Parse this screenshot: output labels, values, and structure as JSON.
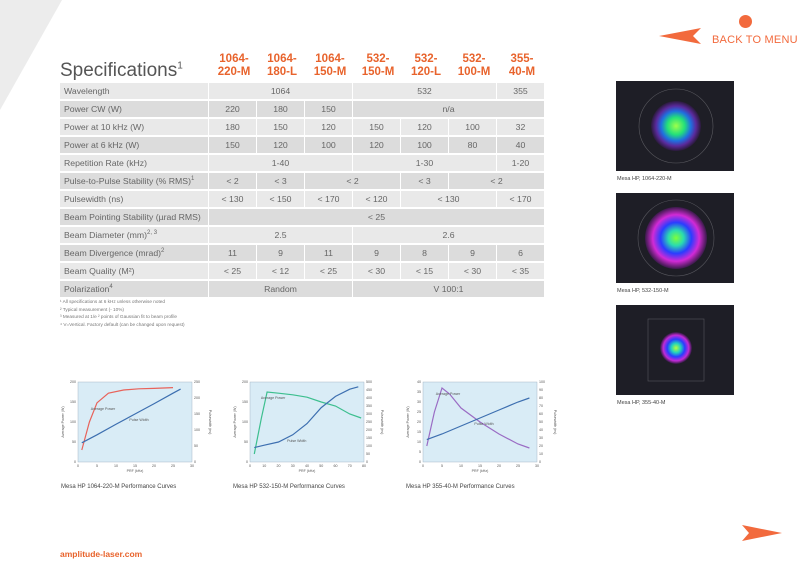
{
  "nav": {
    "back_label": "BACK TO MENU"
  },
  "title": "Specifications",
  "title_note": "1",
  "columns": [
    [
      "1064-",
      "220-M"
    ],
    [
      "1064-",
      "180-L"
    ],
    [
      "1064-",
      "150-M"
    ],
    [
      "532-",
      "150-M"
    ],
    [
      "532-",
      "120-L"
    ],
    [
      "532-",
      "100-M"
    ],
    [
      "355-",
      "40-M"
    ]
  ],
  "rows": [
    {
      "label": "Wavelength",
      "note": "",
      "cells": [
        {
          "v": "1064",
          "s": 3
        },
        {
          "v": "532",
          "s": 3
        },
        {
          "v": "355",
          "s": 1
        }
      ]
    },
    {
      "label": "Power CW (W)",
      "note": "",
      "cells": [
        {
          "v": "220",
          "s": 1
        },
        {
          "v": "180",
          "s": 1
        },
        {
          "v": "150",
          "s": 1
        },
        {
          "v": "n/a",
          "s": 4
        }
      ]
    },
    {
      "label": "Power at 10 kHz (W)",
      "note": "",
      "cells": [
        {
          "v": "180",
          "s": 1
        },
        {
          "v": "150",
          "s": 1
        },
        {
          "v": "120",
          "s": 1
        },
        {
          "v": "150",
          "s": 1
        },
        {
          "v": "120",
          "s": 1
        },
        {
          "v": "100",
          "s": 1
        },
        {
          "v": "32",
          "s": 1
        }
      ]
    },
    {
      "label": "Power at 6 kHz (W)",
      "note": "",
      "cells": [
        {
          "v": "150",
          "s": 1
        },
        {
          "v": "120",
          "s": 1
        },
        {
          "v": "100",
          "s": 1
        },
        {
          "v": "120",
          "s": 1
        },
        {
          "v": "100",
          "s": 1
        },
        {
          "v": "80",
          "s": 1
        },
        {
          "v": "40",
          "s": 1
        }
      ]
    },
    {
      "label": "Repetition Rate (kHz)",
      "note": "",
      "cells": [
        {
          "v": "1-40",
          "s": 3
        },
        {
          "v": "1-30",
          "s": 3
        },
        {
          "v": "1-20",
          "s": 1
        }
      ]
    },
    {
      "label": "Pulse-to-Pulse Stability (% RMS)",
      "note": "1",
      "cells": [
        {
          "v": "< 2",
          "s": 1
        },
        {
          "v": "< 3",
          "s": 1
        },
        {
          "v": "< 2",
          "s": 2
        },
        {
          "v": "< 3",
          "s": 1
        },
        {
          "v": "< 2",
          "s": 2
        }
      ]
    },
    {
      "label": "Pulsewidth (ns)",
      "note": "",
      "cells": [
        {
          "v": "< 130",
          "s": 1
        },
        {
          "v": "< 150",
          "s": 1
        },
        {
          "v": "< 170",
          "s": 1
        },
        {
          "v": "< 120",
          "s": 1
        },
        {
          "v": "< 130",
          "s": 2
        },
        {
          "v": "< 170",
          "s": 1
        }
      ]
    },
    {
      "label": "Beam Pointing Stability (µrad RMS)",
      "note": "",
      "cells": [
        {
          "v": "< 25",
          "s": 7
        }
      ]
    },
    {
      "label": "Beam Diameter (mm)",
      "note": "2, 3",
      "cells": [
        {
          "v": "2.5",
          "s": 3
        },
        {
          "v": "2.6",
          "s": 4
        }
      ]
    },
    {
      "label": "Beam Divergence (mrad)",
      "note": "2",
      "cells": [
        {
          "v": "11",
          "s": 1
        },
        {
          "v": "9",
          "s": 1
        },
        {
          "v": "11",
          "s": 1
        },
        {
          "v": "9",
          "s": 1
        },
        {
          "v": "8",
          "s": 1
        },
        {
          "v": "9",
          "s": 1
        },
        {
          "v": "6",
          "s": 1
        }
      ]
    },
    {
      "label": "Beam Quality (M²)",
      "note": "",
      "cells": [
        {
          "v": "< 25",
          "s": 1
        },
        {
          "v": "< 12",
          "s": 1
        },
        {
          "v": "< 25",
          "s": 1
        },
        {
          "v": "< 30",
          "s": 1
        },
        {
          "v": "< 15",
          "s": 1
        },
        {
          "v": "< 30",
          "s": 1
        },
        {
          "v": "< 35",
          "s": 1
        }
      ]
    },
    {
      "label": "Polarization",
      "note": "4",
      "cells": [
        {
          "v": "Random",
          "s": 3
        },
        {
          "v": "V 100:1",
          "s": 4
        }
      ]
    }
  ],
  "footnotes": [
    "¹ All specifications at 6 kHz unless otherwise noted",
    "² Typical measurement (- 10%)",
    "³ Measured at 1/e ² points of Gaussian fit to beam profile",
    "⁴ V=Vertical. Factory default (can be changed upon request)"
  ],
  "charts": [
    {
      "caption": "Mesa HP 1064-220-M Performance Curves",
      "xlabel": "PRF (kHz)",
      "ylabel_left": "Average Power (W)",
      "ylabel_right": "Pulsewidth (ns)",
      "power_label": "Average Power",
      "pulse_label": "Pulse Width",
      "power_color": "#e8625a",
      "pulse_color": "#3d6fb0",
      "xlim": [
        0,
        30
      ],
      "ylim_left": [
        0,
        200
      ],
      "ylim_right": [
        0,
        250
      ],
      "xticks": [
        "0",
        "5",
        "10",
        "15",
        "20",
        "25",
        "30"
      ],
      "lticks": [
        "0",
        "50",
        "100",
        "150",
        "200"
      ],
      "rticks": [
        "0",
        "50",
        "100",
        "150",
        "200",
        "250"
      ],
      "power": [
        [
          1,
          30
        ],
        [
          3,
          100
        ],
        [
          5,
          148
        ],
        [
          8,
          172
        ],
        [
          12,
          180
        ],
        [
          16,
          183
        ],
        [
          20,
          184
        ],
        [
          25,
          186
        ]
      ],
      "pulse": [
        [
          1,
          60
        ],
        [
          5,
          85
        ],
        [
          10,
          118
        ],
        [
          15,
          150
        ],
        [
          20,
          182
        ],
        [
          25,
          215
        ],
        [
          27,
          228
        ]
      ]
    },
    {
      "caption": "Mesa HP 532-150-M Performance Curves",
      "xlabel": "PRF (kHz)",
      "ylabel_left": "Average Power (W)",
      "ylabel_right": "Pulsewidth (ns)",
      "power_label": "Average Power",
      "pulse_label": "Pulse Width",
      "power_color": "#3dbf8f",
      "pulse_color": "#3d6fb0",
      "xlim": [
        0,
        80
      ],
      "ylim_left": [
        0,
        200
      ],
      "ylim_right": [
        0,
        500
      ],
      "xticks": [
        "0",
        "10",
        "20",
        "30",
        "40",
        "50",
        "60",
        "70",
        "80"
      ],
      "lticks": [
        "0",
        "50",
        "100",
        "150",
        "200"
      ],
      "rticks": [
        "0",
        "50",
        "100",
        "150",
        "200",
        "250",
        "300",
        "350",
        "400",
        "450",
        "500"
      ],
      "power": [
        [
          3,
          20
        ],
        [
          8,
          110
        ],
        [
          12,
          175
        ],
        [
          20,
          172
        ],
        [
          30,
          168
        ],
        [
          40,
          162
        ],
        [
          50,
          150
        ],
        [
          60,
          140
        ],
        [
          70,
          120
        ],
        [
          78,
          110
        ]
      ],
      "pulse": [
        [
          3,
          90
        ],
        [
          10,
          105
        ],
        [
          20,
          125
        ],
        [
          30,
          170
        ],
        [
          40,
          240
        ],
        [
          50,
          340
        ],
        [
          60,
          410
        ],
        [
          70,
          455
        ],
        [
          76,
          470
        ]
      ]
    },
    {
      "caption": "Mesa HP 355-40-M Performance Curves",
      "xlabel": "PRF (kHz)",
      "ylabel_left": "Average Power (W)",
      "ylabel_right": "Pulsewidth (ns)",
      "power_label": "Average Power",
      "pulse_label": "Pulse Width",
      "power_color": "#9a6cc4",
      "pulse_color": "#3d6fb0",
      "xlim": [
        0,
        30
      ],
      "ylim_left": [
        0,
        40
      ],
      "ylim_right": [
        0,
        100
      ],
      "xticks": [
        "0",
        "5",
        "10",
        "15",
        "20",
        "25",
        "30"
      ],
      "lticks": [
        "0",
        "5",
        "10",
        "15",
        "20",
        "25",
        "30",
        "35",
        "40"
      ],
      "rticks": [
        "0",
        "10",
        "20",
        "30",
        "40",
        "50",
        "60",
        "70",
        "80",
        "90",
        "100"
      ],
      "power": [
        [
          1,
          8
        ],
        [
          3,
          25
        ],
        [
          5,
          37
        ],
        [
          7,
          34
        ],
        [
          10,
          27
        ],
        [
          15,
          20
        ],
        [
          20,
          14
        ],
        [
          25,
          9
        ],
        [
          28,
          7
        ]
      ],
      "pulse": [
        [
          1,
          28
        ],
        [
          5,
          35
        ],
        [
          10,
          45
        ],
        [
          15,
          55
        ],
        [
          20,
          65
        ],
        [
          25,
          75
        ],
        [
          28,
          80
        ]
      ]
    }
  ],
  "beams": [
    {
      "caption": "Mesa HP, 1064-220-M"
    },
    {
      "caption": "Mesa HP, 532-150-M"
    },
    {
      "caption": "Mesa HP, 355-40-M"
    }
  ],
  "footer_link": "amplitude-laser.com",
  "colors": {
    "accent": "#e8632c",
    "chart_bg": "#d9ecf6"
  }
}
